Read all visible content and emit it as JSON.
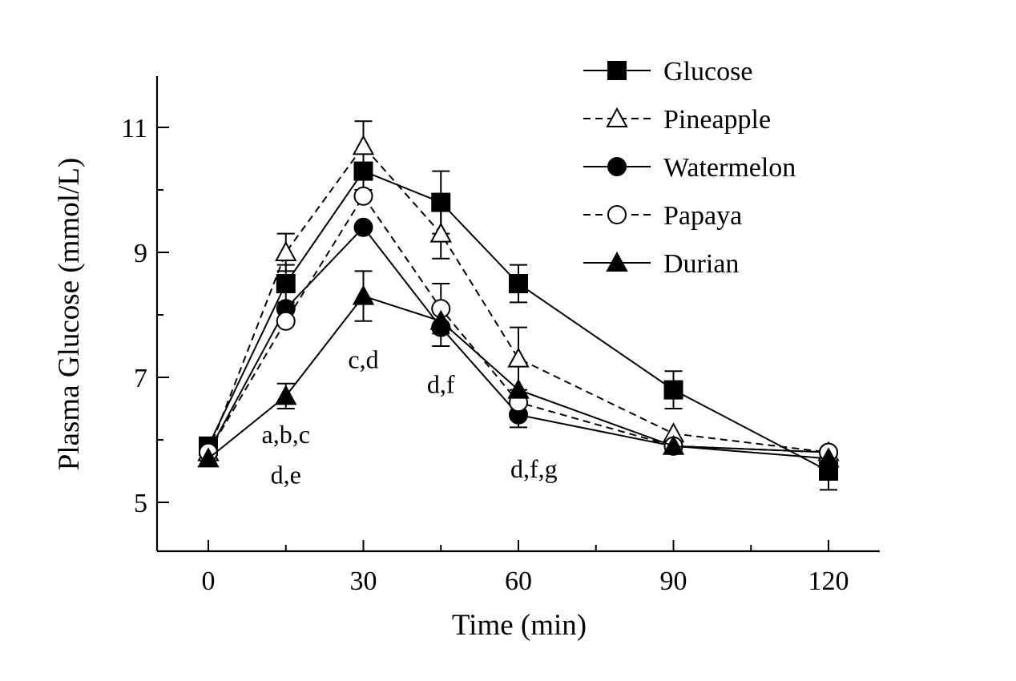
{
  "chart_data": {
    "type": "line",
    "title": "",
    "xlabel": "Time (min)",
    "ylabel": "Plasma Glucose (mmol/L)",
    "xlim": [
      -8,
      130
    ],
    "ylim": [
      4.2,
      11.8
    ],
    "x_ticks": [
      0,
      30,
      60,
      90,
      120
    ],
    "x_minor_ticks": [
      15,
      45,
      75,
      105
    ],
    "y_ticks": [
      5,
      7,
      9,
      11
    ],
    "y_minor_ticks": [
      6,
      8,
      10
    ],
    "x": [
      0,
      15,
      30,
      45,
      60,
      90,
      120
    ],
    "grid": false,
    "legend_position": "top-right",
    "series": [
      {
        "name": "Glucose",
        "marker": "square",
        "filled": true,
        "dashed": false,
        "values": [
          5.9,
          8.5,
          10.3,
          9.8,
          8.5,
          6.8,
          5.5
        ],
        "errors": [
          0,
          0.3,
          0.3,
          0.5,
          0.3,
          0.3,
          0.3
        ]
      },
      {
        "name": "Pineapple",
        "marker": "triangle",
        "filled": false,
        "dashed": true,
        "values": [
          5.8,
          9.0,
          10.7,
          9.3,
          7.3,
          6.1,
          5.8
        ],
        "errors": [
          0,
          0.3,
          0.4,
          0.4,
          0.5,
          0,
          0
        ]
      },
      {
        "name": "Watermelon",
        "marker": "circle",
        "filled": true,
        "dashed": false,
        "values": [
          5.8,
          8.1,
          9.4,
          7.8,
          6.4,
          5.9,
          5.8
        ],
        "errors": [
          0,
          0,
          0,
          0.3,
          0.2,
          0,
          0
        ]
      },
      {
        "name": "Papaya",
        "marker": "circle",
        "filled": false,
        "dashed": true,
        "values": [
          5.8,
          7.9,
          9.9,
          8.1,
          6.6,
          5.9,
          5.8
        ],
        "errors": [
          0,
          0,
          0,
          0.4,
          0,
          0,
          0
        ]
      },
      {
        "name": "Durian",
        "marker": "triangle",
        "filled": true,
        "dashed": false,
        "values": [
          5.7,
          6.7,
          8.3,
          7.9,
          6.8,
          5.9,
          5.7
        ],
        "errors": [
          0,
          0.2,
          0.4,
          0,
          0,
          0,
          0
        ]
      }
    ],
    "annotations": [
      {
        "text": "a,b,c",
        "x": 15,
        "y": 5.95
      },
      {
        "text": "d,e",
        "x": 15,
        "y": 5.3
      },
      {
        "text": "c,d",
        "x": 30,
        "y": 7.15
      },
      {
        "text": "d,f",
        "x": 45,
        "y": 6.75
      },
      {
        "text": "d,f,g",
        "x": 63,
        "y": 5.4
      }
    ]
  }
}
